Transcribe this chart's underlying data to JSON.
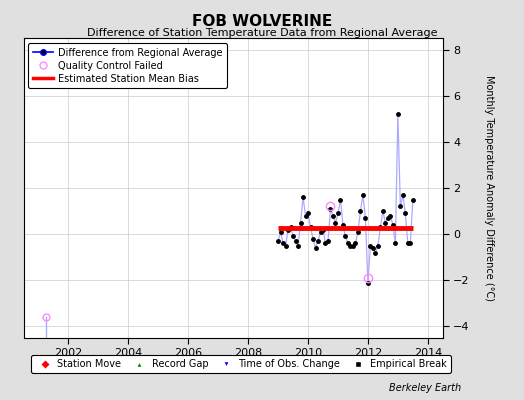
{
  "title": "FOB WOLVERINE",
  "subtitle": "Difference of Station Temperature Data from Regional Average",
  "ylabel": "Monthly Temperature Anomaly Difference (°C)",
  "xlabel_bottom": "Berkeley Earth",
  "background_color": "#e0e0e0",
  "plot_bg_color": "#ffffff",
  "xlim": [
    2000.5,
    2014.5
  ],
  "ylim": [
    -4.5,
    8.5
  ],
  "yticks": [
    -4,
    -2,
    0,
    2,
    4,
    6,
    8
  ],
  "xticks": [
    2002,
    2004,
    2006,
    2008,
    2010,
    2012,
    2014
  ],
  "mean_bias": 0.25,
  "bias_x_start": 2009.0,
  "bias_x_end": 2013.5,
  "data_x": [
    2009.0,
    2009.083,
    2009.167,
    2009.25,
    2009.333,
    2009.417,
    2009.5,
    2009.583,
    2009.667,
    2009.75,
    2009.833,
    2009.917,
    2010.0,
    2010.083,
    2010.167,
    2010.25,
    2010.333,
    2010.417,
    2010.5,
    2010.583,
    2010.667,
    2010.75,
    2010.833,
    2010.917,
    2011.0,
    2011.083,
    2011.167,
    2011.25,
    2011.333,
    2011.417,
    2011.5,
    2011.583,
    2011.667,
    2011.75,
    2011.833,
    2011.917,
    2012.0,
    2012.083,
    2012.167,
    2012.25,
    2012.333,
    2012.417,
    2012.5,
    2012.583,
    2012.667,
    2012.75,
    2012.833,
    2012.917,
    2013.0,
    2013.083,
    2013.167,
    2013.25,
    2013.333,
    2013.417,
    2013.5
  ],
  "data_y": [
    -0.3,
    0.1,
    -0.4,
    -0.5,
    0.2,
    0.3,
    -0.1,
    -0.3,
    -0.5,
    0.5,
    1.6,
    0.8,
    0.9,
    0.3,
    -0.2,
    -0.6,
    -0.3,
    0.1,
    0.2,
    -0.4,
    -0.3,
    1.1,
    0.8,
    0.5,
    0.9,
    1.5,
    0.4,
    -0.1,
    -0.4,
    -0.5,
    -0.5,
    -0.4,
    0.1,
    1.0,
    1.7,
    0.7,
    -2.1,
    -0.5,
    -0.6,
    -0.8,
    -0.5,
    0.3,
    1.0,
    0.5,
    0.7,
    0.8,
    0.4,
    -0.4,
    5.2,
    1.2,
    1.7,
    0.9,
    -0.4,
    -0.4,
    1.5
  ],
  "isolated_x": 2001.25,
  "isolated_y": -3.6,
  "qc_x1": 2010.75,
  "qc_y1": 1.2,
  "qc_x2": 2012.0,
  "qc_y2": -1.9,
  "line_color": "#aaaaff",
  "marker_color": "#000000",
  "qc_color": "#ff88ff",
  "bias_color": "#ff0000",
  "legend_line_color": "#0000ff",
  "grid_color": "#cccccc"
}
